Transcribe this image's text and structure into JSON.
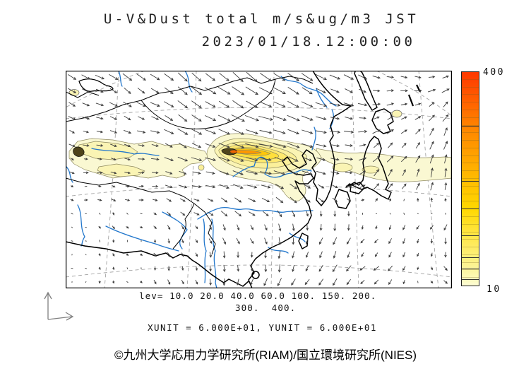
{
  "header": {
    "title_line1": "U-V&Dust total m/s&ug/m3 JST",
    "title_line2": "2023/01/18.12:00:00"
  },
  "footer": {
    "lev_line1": "lev= 10.0 20.0 40.0 60.0 100. 150. 200.",
    "lev_line2": "300.  400.",
    "unit_line": "XUNIT = 6.000E+01, YUNIT = 6.000E+01",
    "credit": "©九州大学応用力学研究所(RIAM)/国立環境研究所(NIES)"
  },
  "chart_data": {
    "type": "map_vector_contour",
    "title": "U-V&Dust total m/s&ug/m3 JST",
    "timestamp": "2023/01/18.12:00:00",
    "timezone": "JST",
    "wind_units": "m/s",
    "dust_units": "ug/m3",
    "region": "East Asia",
    "xunit": "6.000E+01",
    "yunit": "6.000E+01",
    "contour_levels": [
      10.0,
      20.0,
      40.0,
      60.0,
      100,
      150,
      200,
      300,
      400
    ],
    "palette": [
      "#FAF8D2",
      "#FAF4B4",
      "#FBF09A",
      "#FFE96E",
      "#FFDF3C",
      "#FFC60A",
      "#FF9800"
    ],
    "core_color": "#4E431B",
    "core_hot_color": "#F06400",
    "arrow_color": "#3c3c3c",
    "river_color": "#2277cc",
    "coast_color": "#000000",
    "colorbar": {
      "min": 10,
      "max": 400,
      "tick_top": "400",
      "tick_bottom": "10",
      "divider_values": [
        20,
        40,
        60,
        100,
        150,
        200,
        300
      ],
      "stops": [
        [
          10,
          "#FDFDD8"
        ],
        [
          20,
          "#FCFABC"
        ],
        [
          40,
          "#FBF59E"
        ],
        [
          60,
          "#FCF07E"
        ],
        [
          100,
          "#FFE74A"
        ],
        [
          150,
          "#FFD800"
        ],
        [
          200,
          "#FFBE00"
        ],
        [
          300,
          "#FF8400"
        ],
        [
          400,
          "#FF3800"
        ]
      ]
    },
    "wind_field": {
      "grid_cols": 28,
      "grid_rows": 16,
      "lattice_u": [
        [
          8,
          8,
          10,
          12,
          10,
          7,
          7
        ],
        [
          6,
          7,
          10,
          14,
          11,
          6,
          4
        ],
        [
          3,
          5,
          9,
          11,
          8,
          5,
          1
        ],
        [
          1,
          1,
          2,
          3,
          -2,
          -2,
          -2
        ],
        [
          0.5,
          1,
          1,
          -2,
          -4,
          -5,
          4
        ]
      ],
      "lattice_v": [
        [
          4,
          6,
          8,
          9,
          6,
          2,
          -1
        ],
        [
          2,
          2,
          6,
          4,
          3,
          -3,
          -7
        ],
        [
          1,
          0,
          2,
          3,
          4,
          -7,
          -9
        ],
        [
          1,
          2,
          4,
          6,
          7,
          4,
          6
        ],
        [
          1,
          2,
          5,
          7,
          6,
          4,
          2
        ]
      ]
    }
  }
}
